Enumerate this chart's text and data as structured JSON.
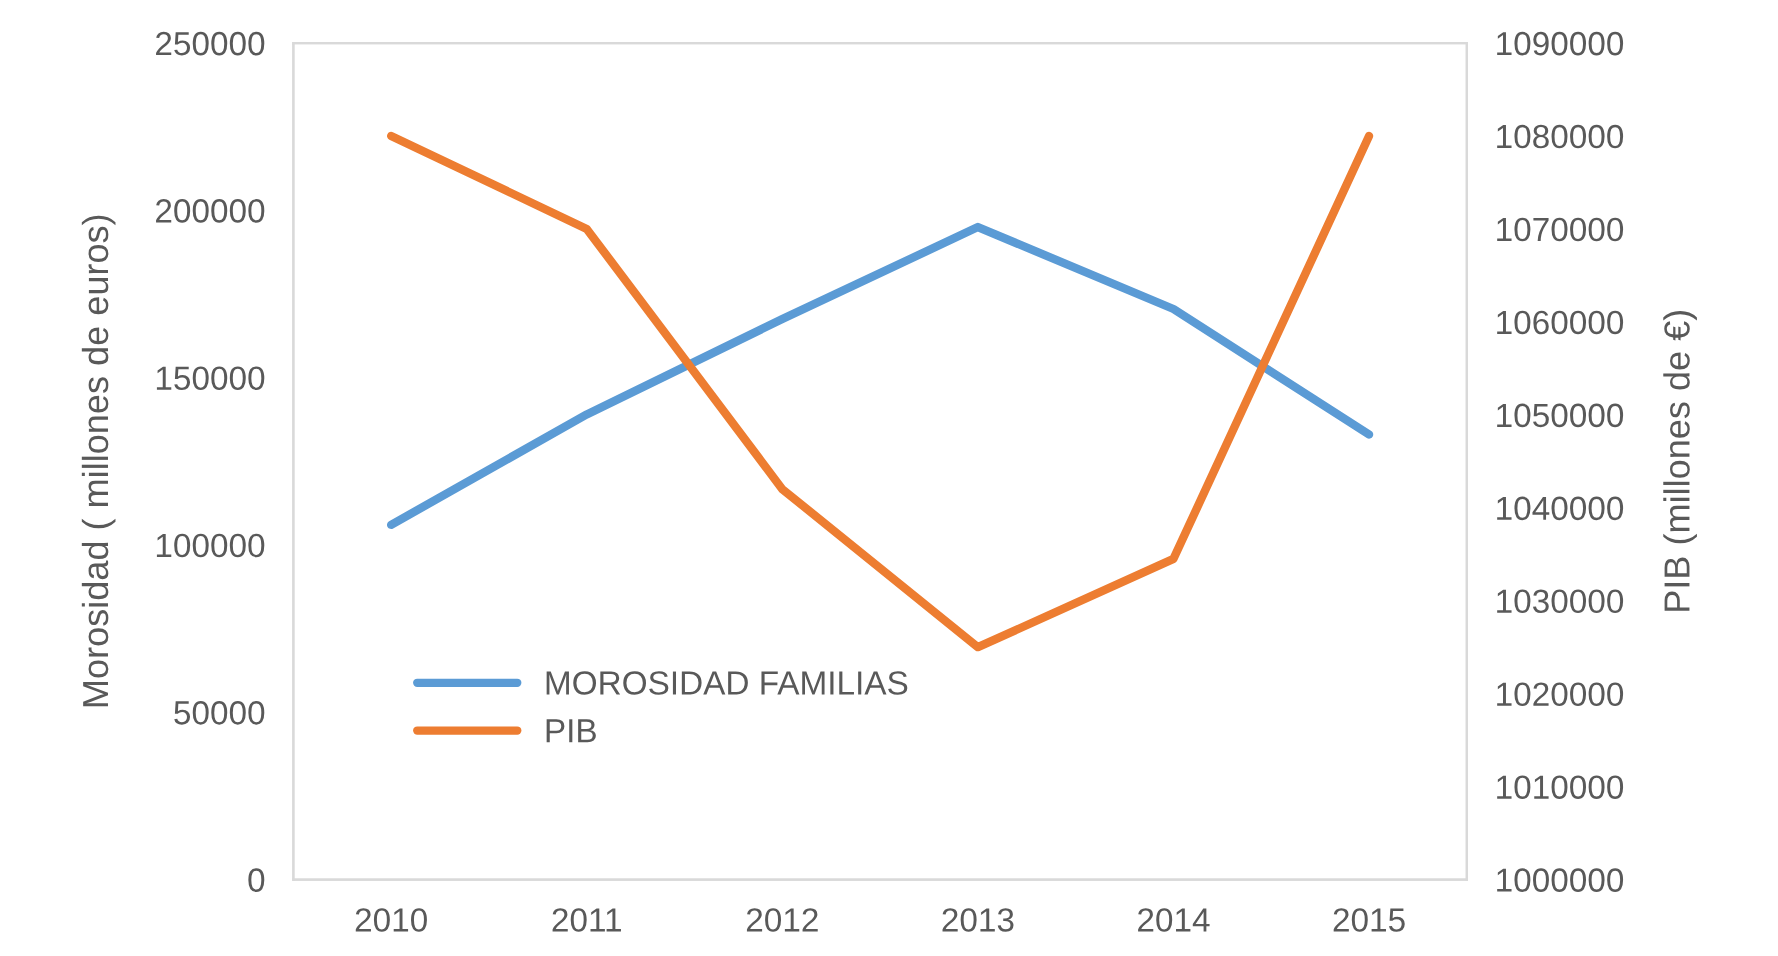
{
  "chart_data": {
    "type": "line",
    "ylabel": "Morosidad ( millones de euros)",
    "y2label": "PIB (millones de €)",
    "categories": [
      "2010",
      "2011",
      "2012",
      "2013",
      "2014",
      "2015"
    ],
    "series": [
      {
        "name": "MOROSIDAD FAMILIAS",
        "color": "#5b9bd5",
        "values": [
          106000,
          139000,
          167500,
          195000,
          170500,
          133000
        ]
      },
      {
        "name": "PIB",
        "color": "#ed7d31",
        "axis": "y2",
        "values": [
          1080000,
          1070000,
          1042000,
          1025000,
          1034500,
          1080000
        ]
      }
    ],
    "ylim": [
      0,
      250000
    ],
    "yticks": [
      0,
      50000,
      100000,
      150000,
      200000,
      250000
    ],
    "y2lim": [
      1000000,
      1090000
    ],
    "y2ticks": [
      1000000,
      1010000,
      1020000,
      1030000,
      1040000,
      1050000,
      1060000,
      1070000,
      1080000,
      1090000
    ],
    "grid": false,
    "legend": "bottom left",
    "marker": "none",
    "line_style": "solid"
  }
}
